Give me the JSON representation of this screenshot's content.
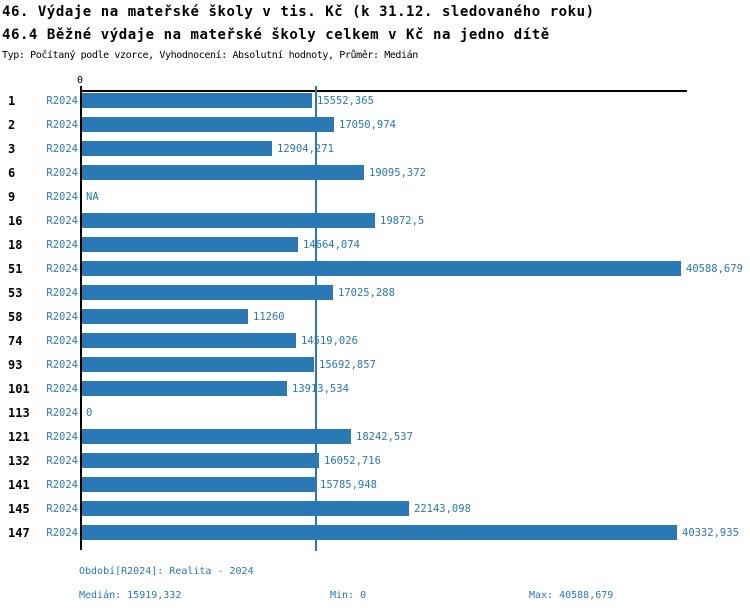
{
  "header": {
    "title1": "46. Výdaje na mateřské školy v tis. Kč (k 31.12. sledovaného roku)",
    "title2": "46.4 Běžné výdaje na mateřské školy celkem v Kč na jedno dítě",
    "meta": "Typ: Počítaný podle vzorce, Vyhodnocení: Absolutní hodnoty, Průměr: Medián"
  },
  "colors": {
    "accent": "#2a78b4",
    "bar": "#2a78b4",
    "axis": "#000000",
    "text": "#000000"
  },
  "chart_data": {
    "type": "bar",
    "orientation": "horizontal",
    "title": "46.4 Běžné výdaje na mateřské školy celkem v Kč na jedno dítě",
    "axis_origin_label": "0",
    "xlim": [
      0,
      40588.679
    ],
    "grid": false,
    "median_value": 15919.332,
    "series_label": "R2024",
    "categories": [
      "1",
      "2",
      "3",
      "6",
      "9",
      "16",
      "18",
      "51",
      "53",
      "58",
      "74",
      "93",
      "101",
      "113",
      "121",
      "132",
      "141",
      "145",
      "147"
    ],
    "rows": [
      {
        "category": "1",
        "period": "R2024",
        "value": 15552.365,
        "label": "15552,365"
      },
      {
        "category": "2",
        "period": "R2024",
        "value": 17050.974,
        "label": "17050,974"
      },
      {
        "category": "3",
        "period": "R2024",
        "value": 12904.271,
        "label": "12904,271"
      },
      {
        "category": "6",
        "period": "R2024",
        "value": 19095.372,
        "label": "19095,372"
      },
      {
        "category": "9",
        "period": "R2024",
        "value": null,
        "label": "NA"
      },
      {
        "category": "16",
        "period": "R2024",
        "value": 19872.5,
        "label": "19872,5"
      },
      {
        "category": "18",
        "period": "R2024",
        "value": 14664.074,
        "label": "14664,074"
      },
      {
        "category": "51",
        "period": "R2024",
        "value": 40588.679,
        "label": "40588,679"
      },
      {
        "category": "53",
        "period": "R2024",
        "value": 17025.288,
        "label": "17025,288"
      },
      {
        "category": "58",
        "period": "R2024",
        "value": 11260,
        "label": "11260"
      },
      {
        "category": "74",
        "period": "R2024",
        "value": 14519.026,
        "label": "14519,026"
      },
      {
        "category": "93",
        "period": "R2024",
        "value": 15692.857,
        "label": "15692,857"
      },
      {
        "category": "101",
        "period": "R2024",
        "value": 13913.534,
        "label": "13913,534"
      },
      {
        "category": "113",
        "period": "R2024",
        "value": 0,
        "label": "0"
      },
      {
        "category": "121",
        "period": "R2024",
        "value": 18242.537,
        "label": "18242,537"
      },
      {
        "category": "132",
        "period": "R2024",
        "value": 16052.716,
        "label": "16052,716"
      },
      {
        "category": "141",
        "period": "R2024",
        "value": 15785.948,
        "label": "15785,948"
      },
      {
        "category": "145",
        "period": "R2024",
        "value": 22143.098,
        "label": "22143,098"
      },
      {
        "category": "147",
        "period": "R2024",
        "value": 40332.935,
        "label": "40332,935"
      }
    ]
  },
  "footer": {
    "period_line": "Období[R2024]: Realita - 2024",
    "median": "Medián: 15919,332",
    "min": "Min: 0",
    "max": "Max: 40588,679"
  }
}
